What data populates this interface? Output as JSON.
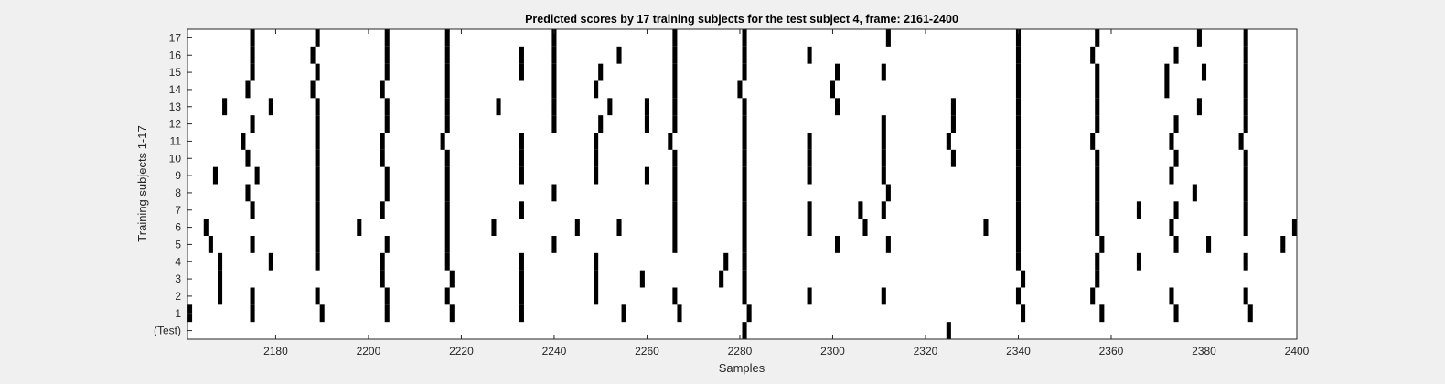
{
  "chart_data": {
    "type": "raster",
    "title": "Predicted scores by 17 training subjects for the test subject 4, frame: 2161-2400",
    "xlabel": "Samples",
    "ylabel": "Training subjects 1-17",
    "xlim": [
      2161,
      2400
    ],
    "xticks": [
      2180,
      2200,
      2220,
      2240,
      2260,
      2280,
      2300,
      2320,
      2340,
      2360,
      2380,
      2400
    ],
    "rows": [
      {
        "label": "(Test)",
        "events": [
          2281,
          2325
        ]
      },
      {
        "label": "1",
        "events": [
          2161,
          2175,
          2190,
          2204,
          2218,
          2233,
          2255,
          2267,
          2282,
          2341,
          2358,
          2374,
          2390
        ]
      },
      {
        "label": "2",
        "events": [
          2168,
          2175,
          2189,
          2204,
          2217,
          2233,
          2249,
          2266,
          2281,
          2295,
          2311,
          2340,
          2356,
          2373,
          2389
        ]
      },
      {
        "label": "3",
        "events": [
          2168,
          2203,
          2218,
          2233,
          2249,
          2259,
          2276,
          2281,
          2341,
          2357
        ]
      },
      {
        "label": "4",
        "events": [
          2168,
          2179,
          2189,
          2203,
          2217,
          2233,
          2249,
          2277,
          2281,
          2340,
          2357,
          2366,
          2389
        ]
      },
      {
        "label": "5",
        "events": [
          2166,
          2175,
          2189,
          2204,
          2217,
          2240,
          2266,
          2281,
          2301,
          2312,
          2340,
          2358,
          2374,
          2381,
          2397
        ]
      },
      {
        "label": "6",
        "events": [
          2165,
          2189,
          2198,
          2217,
          2227,
          2245,
          2254,
          2266,
          2281,
          2295,
          2307,
          2333,
          2340,
          2357,
          2373,
          2389,
          2400
        ]
      },
      {
        "label": "7",
        "events": [
          2175,
          2189,
          2203,
          2217,
          2233,
          2266,
          2281,
          2295,
          2306,
          2311,
          2340,
          2357,
          2366,
          2374,
          2389
        ]
      },
      {
        "label": "8",
        "events": [
          2174,
          2189,
          2204,
          2217,
          2240,
          2266,
          2281,
          2312,
          2340,
          2357,
          2378,
          2389
        ]
      },
      {
        "label": "9",
        "events": [
          2167,
          2176,
          2189,
          2204,
          2217,
          2233,
          2249,
          2260,
          2266,
          2281,
          2295,
          2311,
          2340,
          2357,
          2373,
          2389
        ]
      },
      {
        "label": "10",
        "events": [
          2174,
          2189,
          2203,
          2217,
          2233,
          2249,
          2266,
          2281,
          2295,
          2311,
          2326,
          2340,
          2357,
          2374,
          2389
        ]
      },
      {
        "label": "11",
        "events": [
          2173,
          2189,
          2203,
          2216,
          2233,
          2249,
          2265,
          2281,
          2295,
          2311,
          2325,
          2340,
          2356,
          2373,
          2388
        ]
      },
      {
        "label": "12",
        "events": [
          2175,
          2189,
          2204,
          2217,
          2240,
          2250,
          2260,
          2266,
          2281,
          2311,
          2326,
          2340,
          2357,
          2374,
          2389
        ]
      },
      {
        "label": "13",
        "events": [
          2169,
          2179,
          2189,
          2204,
          2217,
          2228,
          2240,
          2252,
          2260,
          2266,
          2281,
          2301,
          2326,
          2340,
          2357,
          2379,
          2389
        ]
      },
      {
        "label": "14",
        "events": [
          2174,
          2188,
          2203,
          2217,
          2240,
          2249,
          2266,
          2280,
          2300,
          2340,
          2357,
          2372,
          2389
        ]
      },
      {
        "label": "15",
        "events": [
          2175,
          2189,
          2204,
          2217,
          2233,
          2240,
          2250,
          2266,
          2281,
          2301,
          2311,
          2340,
          2357,
          2372,
          2380,
          2389
        ]
      },
      {
        "label": "16",
        "events": [
          2175,
          2188,
          2204,
          2217,
          2233,
          2240,
          2254,
          2266,
          2281,
          2295,
          2340,
          2356,
          2374,
          2389
        ]
      },
      {
        "label": "17",
        "events": [
          2175,
          2189,
          2204,
          2217,
          2240,
          2266,
          2281,
          2312,
          2340,
          2357,
          2379,
          2389
        ]
      }
    ],
    "mark_color": "#000000",
    "plot_background": "#ffffff",
    "figure_background": "#f0f0f0",
    "grid": false,
    "legend": "none"
  }
}
